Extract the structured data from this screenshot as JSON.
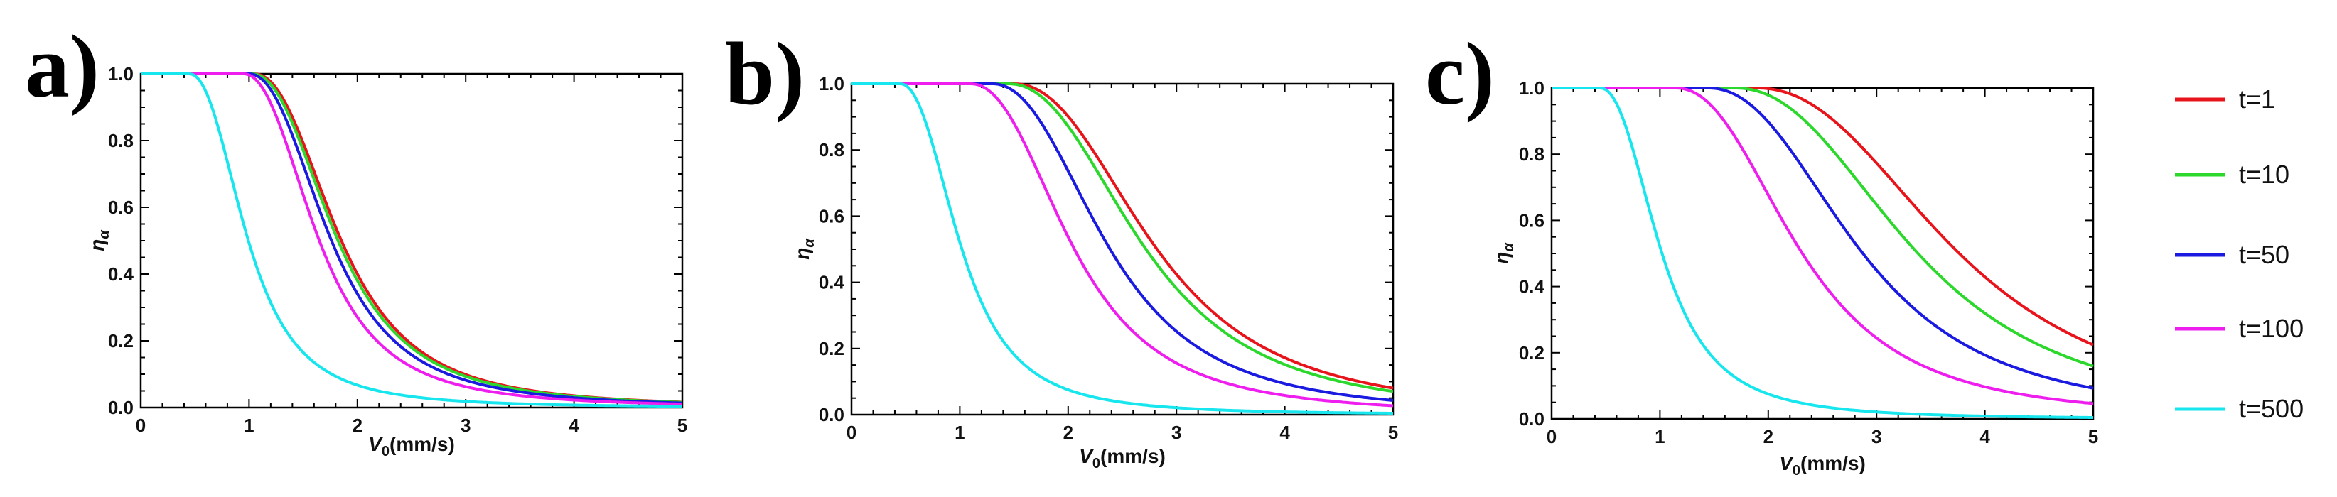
{
  "figure": {
    "legend": [
      {
        "label": "t=1",
        "color": "#e8141b"
      },
      {
        "label": "t=10",
        "color": "#2bd82b"
      },
      {
        "label": "t=50",
        "color": "#1a1ae0"
      },
      {
        "label": "t=100",
        "color": "#ee1fee"
      },
      {
        "label": "t=500",
        "color": "#18e6ee"
      }
    ]
  },
  "chart_data": [
    {
      "type": "line",
      "panel_label": "a)",
      "xlabel_main": "V",
      "xlabel_sub": "0",
      "xlabel_tail": "(mm/s)",
      "ylabel_main": "η",
      "ylabel_sub": "α",
      "xlim": [
        0,
        5
      ],
      "ylim": [
        0,
        1.0
      ],
      "xticks": [
        0,
        1,
        2,
        3,
        4,
        5
      ],
      "yticks": [
        0.0,
        0.2,
        0.4,
        0.6,
        0.8,
        1.0
      ],
      "ytick_labels": [
        "0.0",
        "0.2",
        "0.4",
        "0.6",
        "0.8",
        "1.0"
      ],
      "xtick_labels": [
        "0",
        "1",
        "2",
        "3",
        "4",
        "5"
      ],
      "series": [
        {
          "name": "t=1",
          "color": "#e8141b",
          "onset": 1.05,
          "scale": 1.55
        },
        {
          "name": "t=10",
          "color": "#2bd82b",
          "onset": 1.03,
          "scale": 1.53
        },
        {
          "name": "t=50",
          "color": "#1a1ae0",
          "onset": 1.0,
          "scale": 1.47
        },
        {
          "name": "t=100",
          "color": "#ee1fee",
          "onset": 0.95,
          "scale": 1.35
        },
        {
          "name": "t=500",
          "color": "#18e6ee",
          "onset": 0.45,
          "scale": 1.05
        }
      ]
    },
    {
      "type": "line",
      "panel_label": "b)",
      "xlabel_main": "V",
      "xlabel_sub": "0",
      "xlabel_tail": "(mm/s)",
      "ylabel_main": "η",
      "ylabel_sub": "α",
      "xlim": [
        0,
        5
      ],
      "ylim": [
        0,
        1.0
      ],
      "xticks": [
        0,
        1,
        2,
        3,
        4,
        5
      ],
      "yticks": [
        0.0,
        0.2,
        0.4,
        0.6,
        0.8,
        1.0
      ],
      "ytick_labels": [
        "0.0",
        "0.2",
        "0.4",
        "0.6",
        "0.8",
        "1.0"
      ],
      "xtick_labels": [
        "0",
        "1",
        "2",
        "3",
        "4",
        "5"
      ],
      "series": [
        {
          "name": "t=1",
          "color": "#e8141b",
          "onset": 1.5,
          "scale": 2.55
        },
        {
          "name": "t=10",
          "color": "#2bd82b",
          "onset": 1.45,
          "scale": 2.45
        },
        {
          "name": "t=50",
          "color": "#1a1ae0",
          "onset": 1.3,
          "scale": 2.1
        },
        {
          "name": "t=100",
          "color": "#ee1fee",
          "onset": 1.1,
          "scale": 1.85
        },
        {
          "name": "t=500",
          "color": "#18e6ee",
          "onset": 0.45,
          "scale": 1.1
        }
      ]
    },
    {
      "type": "line",
      "panel_label": "c)",
      "xlabel_main": "V",
      "xlabel_sub": "0",
      "xlabel_tail": "(mm/s)",
      "ylabel_main": "η",
      "ylabel_sub": "α",
      "xlim": [
        0,
        5
      ],
      "ylim": [
        0,
        1.0
      ],
      "xticks": [
        0,
        1,
        2,
        3,
        4,
        5
      ],
      "yticks": [
        0.0,
        0.2,
        0.4,
        0.6,
        0.8,
        1.0
      ],
      "ytick_labels": [
        "0.0",
        "0.2",
        "0.4",
        "0.6",
        "0.8",
        "1.0"
      ],
      "xtick_labels": [
        "0",
        "1",
        "2",
        "3",
        "4",
        "5"
      ],
      "series": [
        {
          "name": "t=1",
          "color": "#e8141b",
          "onset": 1.9,
          "scale": 3.6
        },
        {
          "name": "t=10",
          "color": "#2bd82b",
          "onset": 1.7,
          "scale": 3.25
        },
        {
          "name": "t=50",
          "color": "#1a1ae0",
          "onset": 1.45,
          "scale": 2.75
        },
        {
          "name": "t=100",
          "color": "#ee1fee",
          "onset": 1.15,
          "scale": 2.25
        },
        {
          "name": "t=500",
          "color": "#18e6ee",
          "onset": 0.45,
          "scale": 1.1
        }
      ]
    }
  ]
}
